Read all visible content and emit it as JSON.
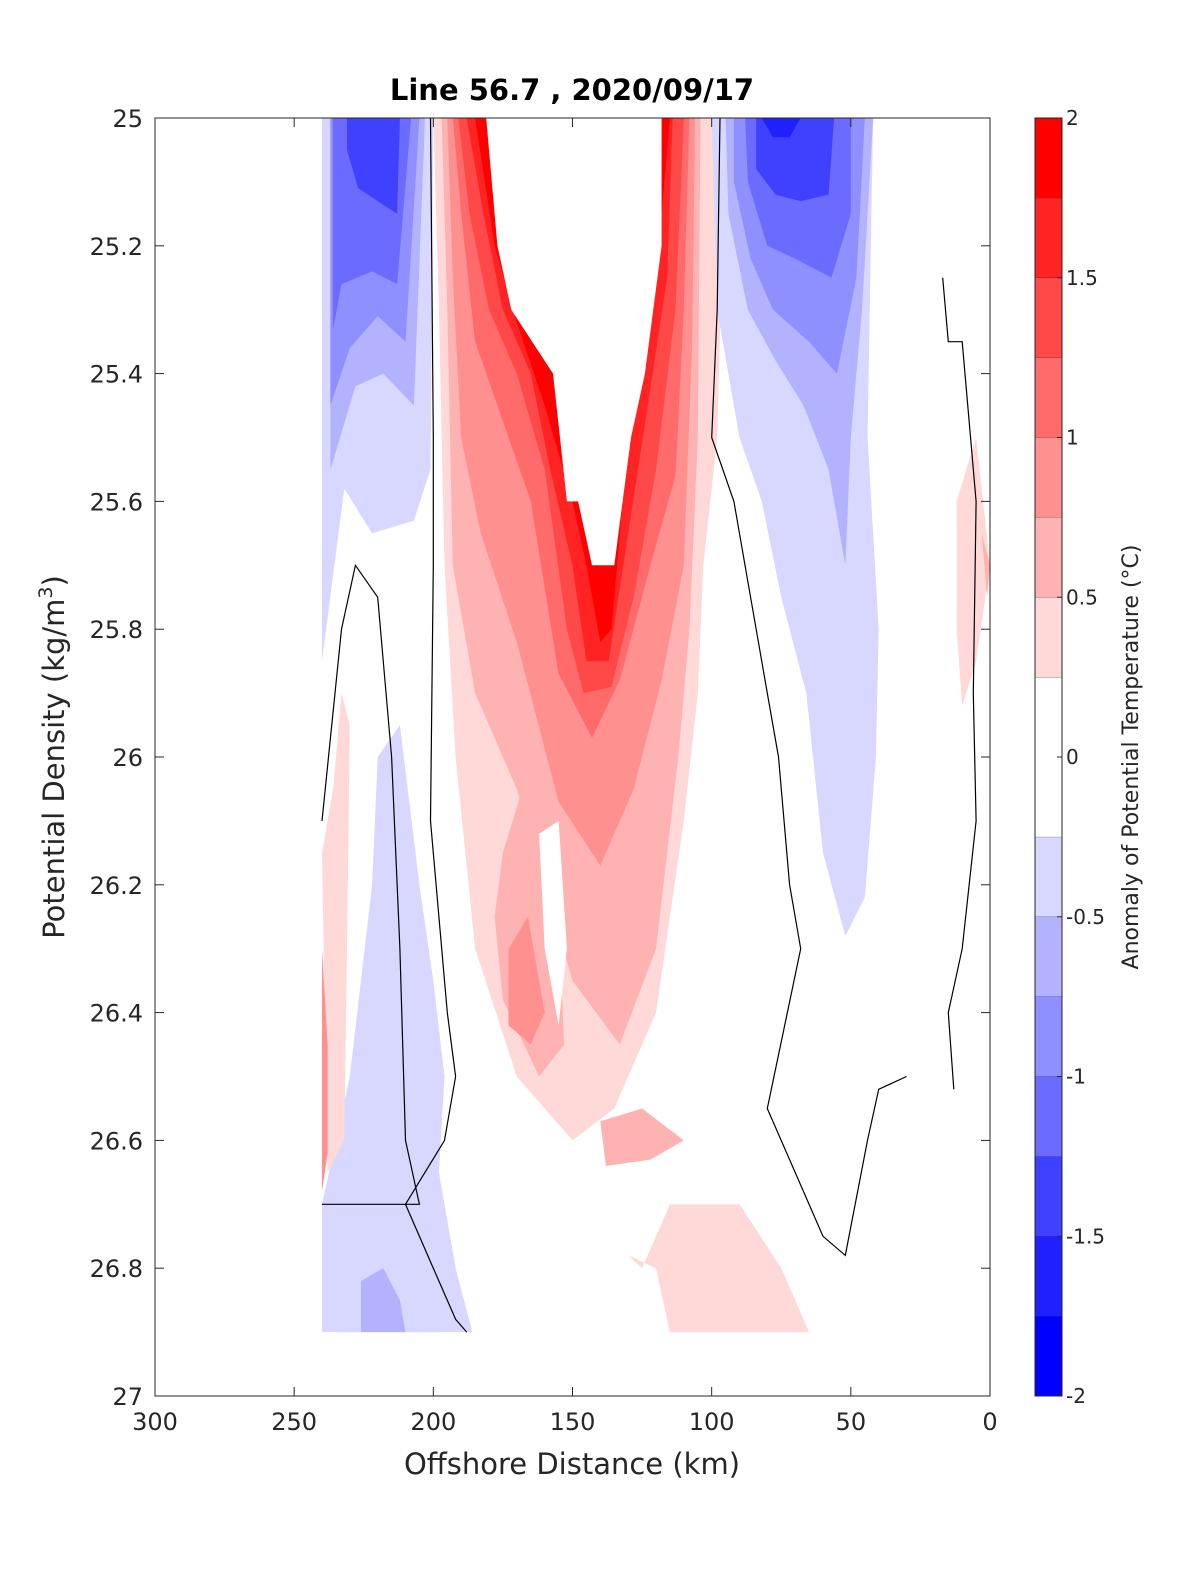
{
  "chart_data": {
    "type": "heatmap",
    "title": "Line 56.7 , 2020/09/17",
    "xlabel": "Offshore Distance (km)",
    "ylabel": "Potential Density (kg/m",
    "ylabel_superscript": "3",
    "ylabel_suffix": ")",
    "xlim": [
      300,
      0
    ],
    "x_reversed": true,
    "ylim": [
      25,
      27
    ],
    "y_reversed": true,
    "xticks": [
      "300",
      "250",
      "200",
      "150",
      "100",
      "50",
      "0"
    ],
    "yticks": [
      "25",
      "25.2",
      "25.4",
      "25.6",
      "25.8",
      "26",
      "26.2",
      "26.4",
      "26.6",
      "26.8",
      "27"
    ],
    "colorbar": {
      "label": "Anomaly of Potential Temperature (°C)",
      "range": [
        -2,
        2
      ],
      "ticks": [
        "2",
        "1.5",
        "1",
        "0.5",
        "0",
        "-0.5",
        "-1",
        "-1.5",
        "-2"
      ],
      "levels": [
        -2,
        -1.75,
        -1.5,
        -1.25,
        -1,
        -0.75,
        -0.5,
        -0.25,
        0.25,
        0.5,
        0.75,
        1,
        1.25,
        1.5,
        1.75,
        2
      ],
      "colors": [
        "#0000ff",
        "#2020ff",
        "#4040ff",
        "#6b6bff",
        "#8f8fff",
        "#b2b2ff",
        "#d7d7ff",
        "#ffffff",
        "#ffd8d8",
        "#ffb2b2",
        "#ff9090",
        "#ff6b6b",
        "#ff4848",
        "#ff2323",
        "#ff0000"
      ]
    },
    "grid": false,
    "zero_contour_line": true,
    "features": [
      {
        "name": "warm core",
        "x_range": [
          182,
          118
        ],
        "y_range": [
          25,
          25.7
        ],
        "anomaly": ">2"
      },
      {
        "name": "cold offshore",
        "x_range": [
          240,
          200
        ],
        "y_range": [
          25,
          25.7
        ],
        "anomaly": "-1.75"
      },
      {
        "name": "cold nearshore",
        "x_range": [
          100,
          42
        ],
        "y_range": [
          25,
          26.28
        ],
        "anomaly": "-1.75"
      },
      {
        "name": "warm deep",
        "x_range": [
          195,
          65
        ],
        "y_range": [
          25.7,
          26.9
        ],
        "anomaly": "0.25 to 1"
      },
      {
        "name": "cold deep",
        "x_range": [
          235,
          185
        ],
        "y_range": [
          26,
          26.9
        ],
        "anomaly": "-0.25 to -1"
      }
    ]
  }
}
